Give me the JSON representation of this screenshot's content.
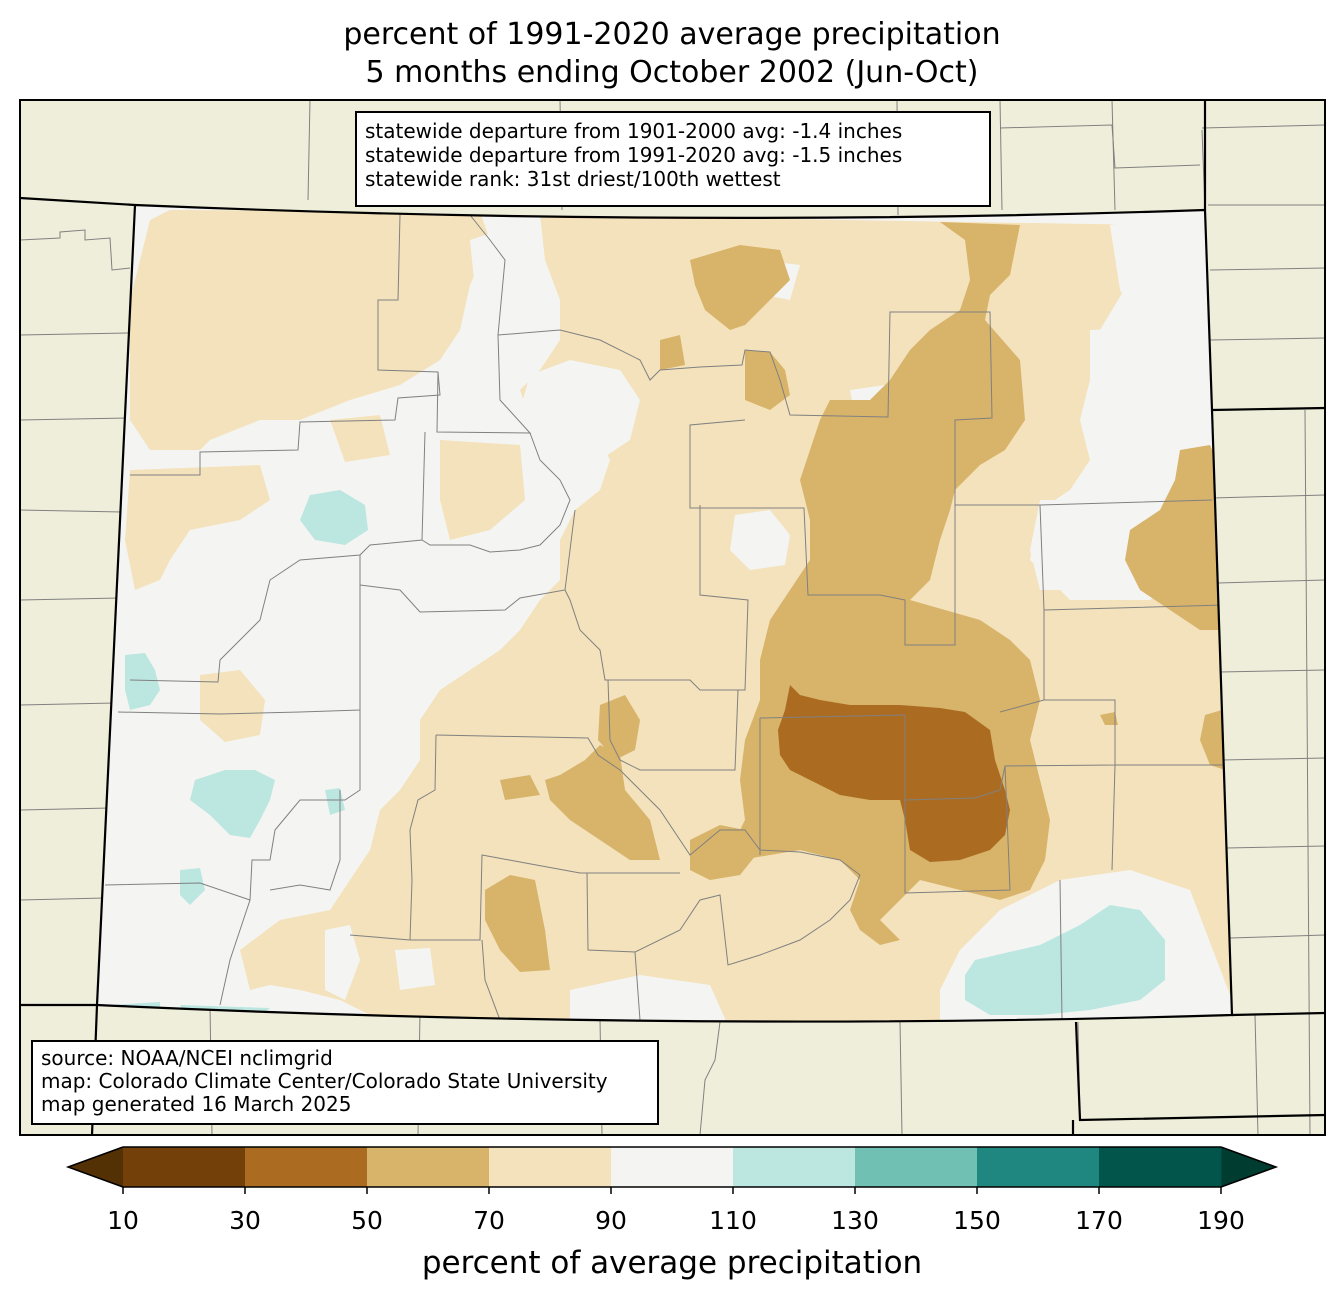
{
  "title": {
    "line1": "percent of 1991-2020 average precipitation",
    "line2": "5 months ending October 2002 (Jun-Oct)"
  },
  "stats_box": {
    "line1": "statewide departure from 1901-2000 avg: -1.4 inches",
    "line2": "statewide departure from 1991-2020 avg: -1.5 inches",
    "line3": "statewide rank: 31st driest/100th wettest"
  },
  "source_box": {
    "line1": "source: NOAA/NCEI nclimgrid",
    "line2": "map: Colorado Climate Center/Colorado State University",
    "line3": "map generated 16 March 2025"
  },
  "colorbar": {
    "ticks": [
      "10",
      "30",
      "50",
      "70",
      "90",
      "110",
      "130",
      "150",
      "170",
      "190"
    ],
    "label": "percent of average precipitation",
    "under_color": "#543005",
    "over_color": "#003c30",
    "colors": [
      "#744009",
      "#ab6c22",
      "#d8b36a",
      "#f3e2bb",
      "#f4f5f3",
      "#bce6e0",
      "#70c1b3",
      "#208680",
      "#01554a"
    ]
  },
  "map_colors": {
    "background": "#efeedb",
    "p30_50": "#ab6c22",
    "p50_70": "#d8b36a",
    "p70_90": "#f3e2bb",
    "p90_110": "#f4f5f3",
    "p110_130": "#bce6e0",
    "border": "#000000",
    "county_line": "#808080"
  }
}
